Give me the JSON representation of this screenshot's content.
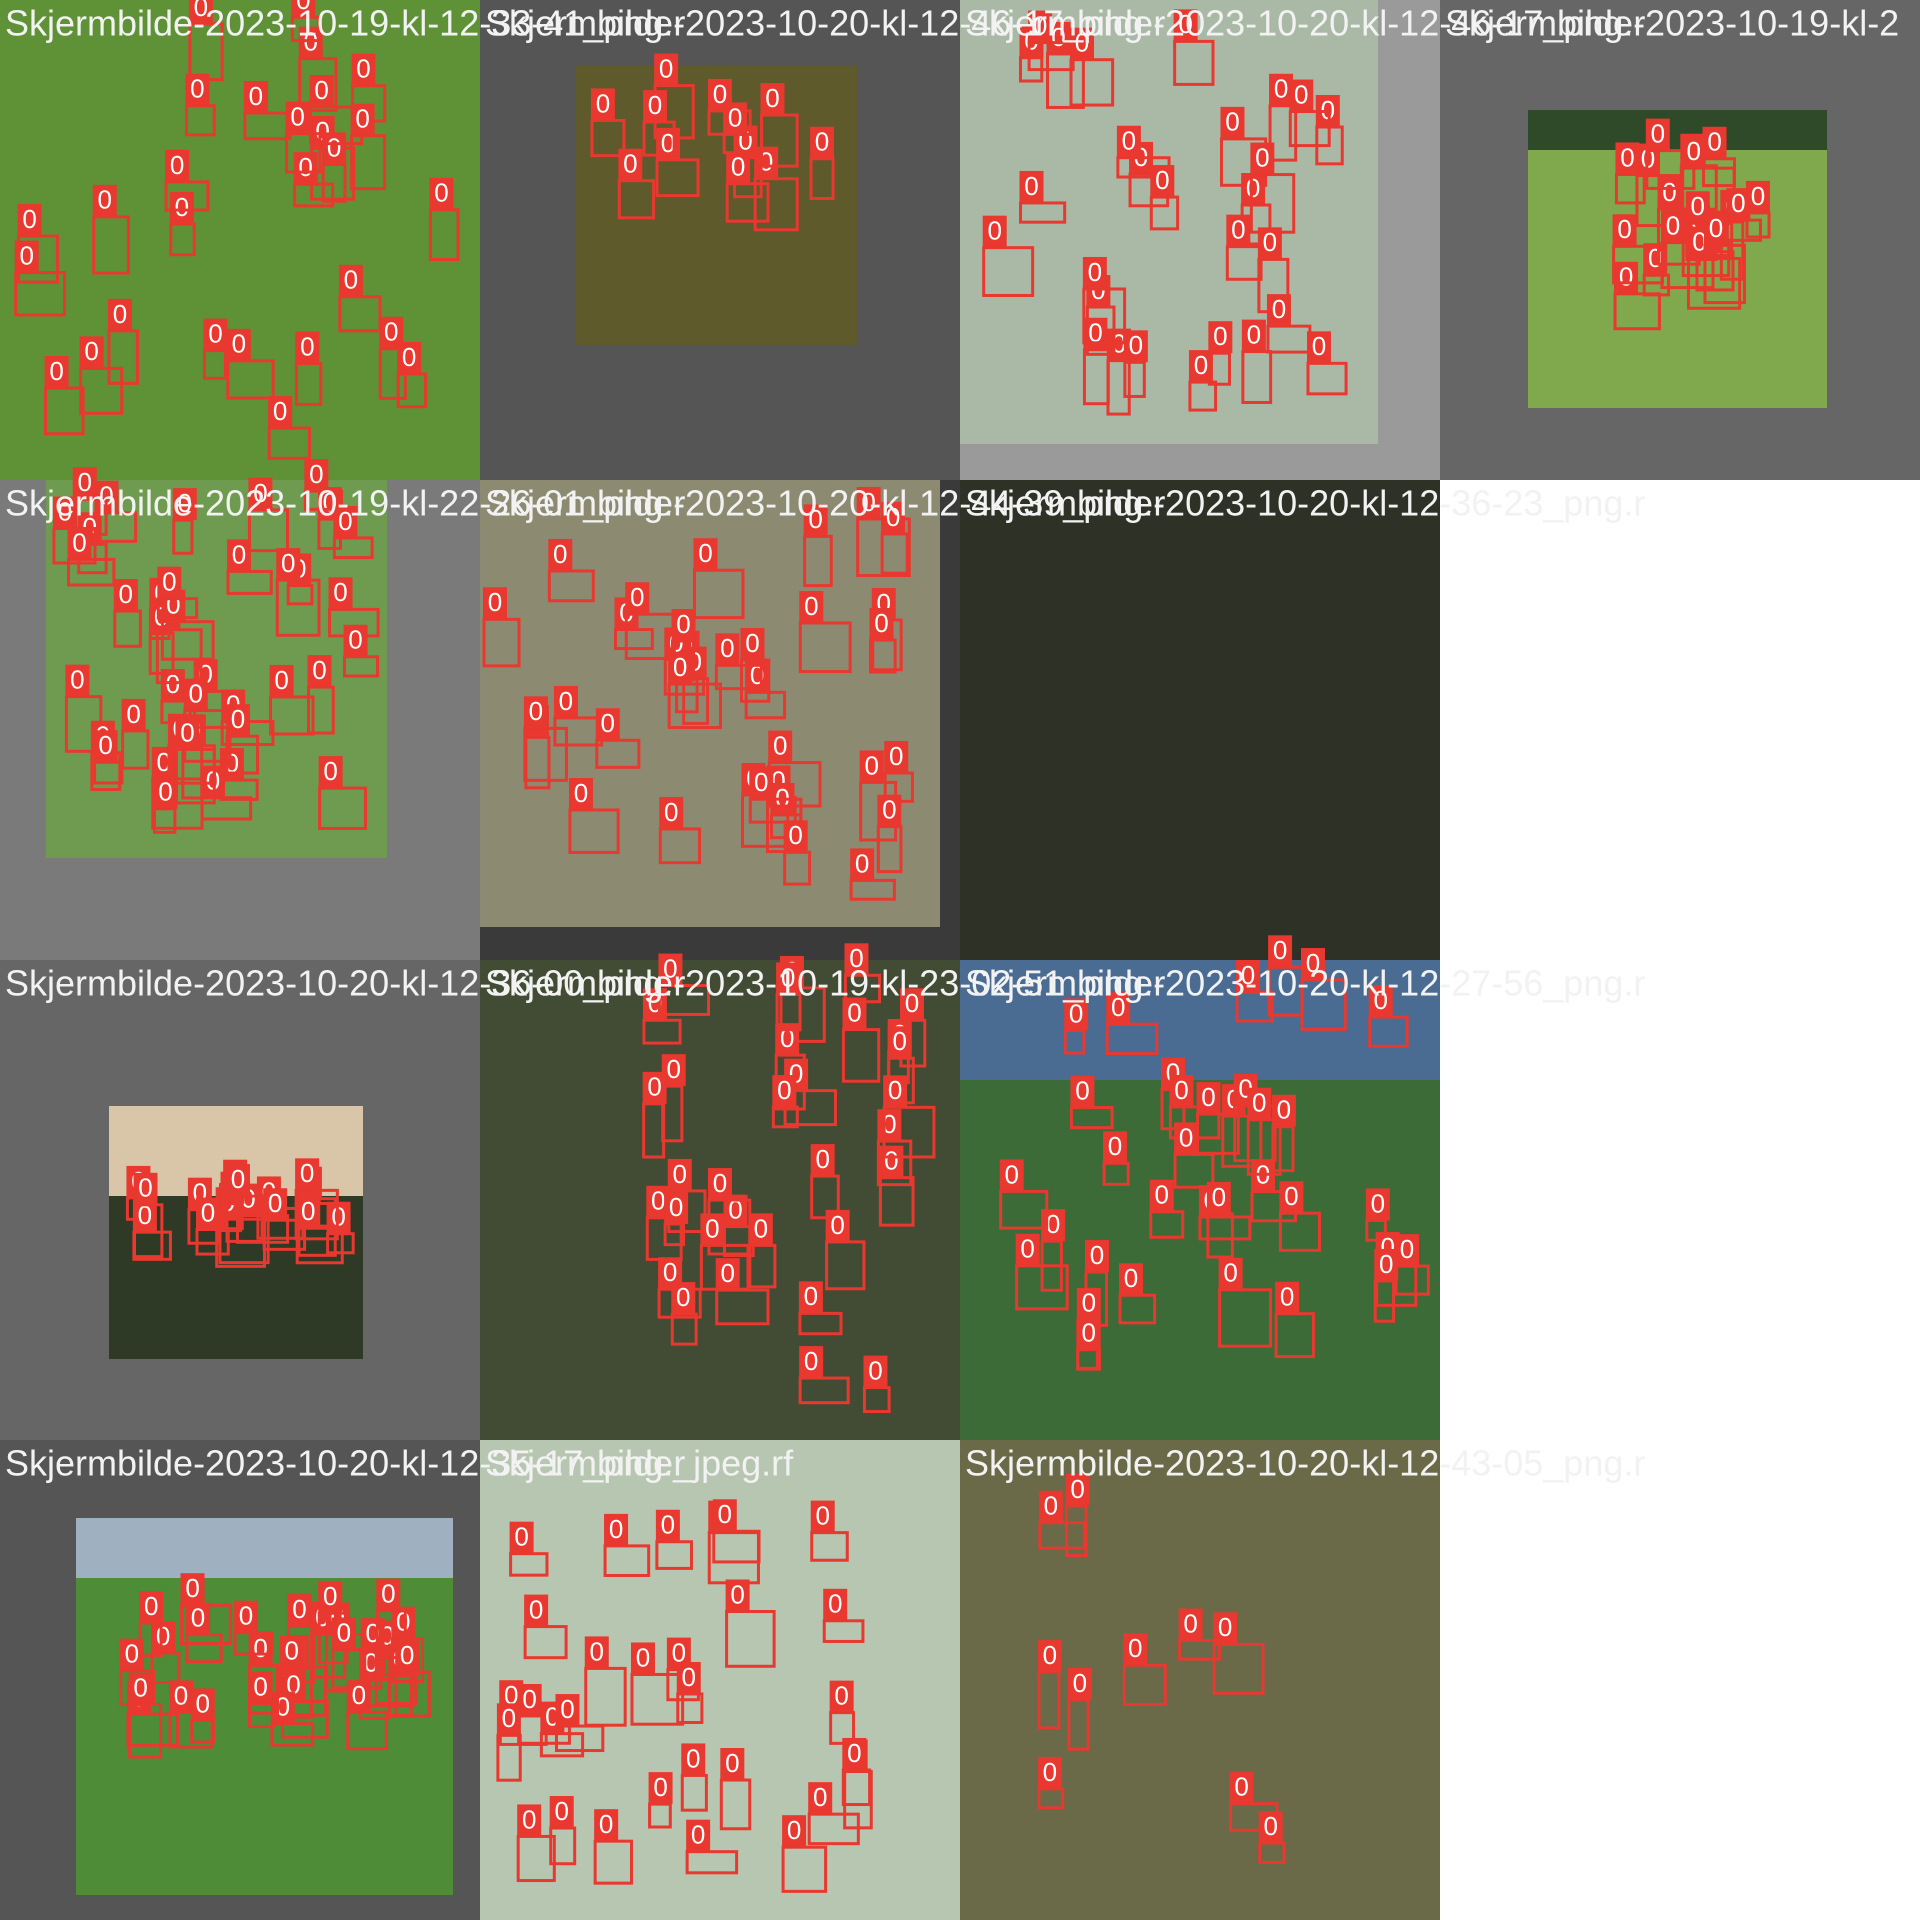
{
  "tiles": [
    {
      "title": "Skjermbilde-2023-10-19-kl-12-33-41_png.r",
      "labels": [
        "0",
        "0",
        "0",
        "0",
        "0",
        "0",
        "0",
        "0",
        "0",
        "0",
        "0",
        "0",
        "0",
        "0",
        "0",
        "0",
        "0",
        "0",
        "0",
        "0",
        "0",
        "0",
        "0",
        "0",
        "0",
        "0",
        "0",
        "0"
      ]
    },
    {
      "title": "Skjermbilde-2023-10-20-kl-12-46-17_png.r",
      "labels": [
        "0",
        "0",
        "0",
        "0",
        "0",
        "0",
        "0",
        "0",
        "0",
        "0",
        "0",
        "0"
      ]
    },
    {
      "title": "Skjermbilde-2023-10-20-kl-12-46-17_png.r",
      "labels": [
        "0",
        "0",
        "0",
        "0",
        "0",
        "0",
        "0",
        "0",
        "0",
        "0",
        "0",
        "0",
        "0",
        "0",
        "0",
        "0",
        "0",
        "0",
        "0",
        "0",
        "0",
        "0",
        "0",
        "0",
        "0",
        "0",
        "0",
        "0"
      ]
    },
    {
      "title": "Skjermbilde-2023-10-19-kl-2",
      "labels": [
        "0",
        "0",
        "0",
        "0",
        "0",
        "0",
        "0",
        "0",
        "0",
        "0",
        "0",
        "0",
        "0",
        "0",
        "0",
        "0",
        "0",
        "0",
        "0",
        "0"
      ]
    },
    {
      "title": "Skjermbilde-2023-10-19-kl-22-26-01_png.r",
      "labels": [
        "0",
        "0",
        "0",
        "0",
        "0",
        "0",
        "0",
        "0",
        "0",
        "0",
        "0",
        "0",
        "0",
        "0",
        "0",
        "0",
        "0",
        "0",
        "0",
        "0",
        "0",
        "0",
        "0",
        "0",
        "0",
        "0",
        "0",
        "0",
        "0",
        "0",
        "0",
        "0",
        "0",
        "0",
        "0",
        "0",
        "0",
        "0",
        "0",
        "0"
      ]
    },
    {
      "title": "Skjermbilde-2023-10-20-kl-12-44-39_png.r",
      "labels": [
        "0",
        "0",
        "0",
        "0",
        "0",
        "0",
        "0",
        "0",
        "0",
        "0",
        "0",
        "0",
        "0",
        "0",
        "0",
        "0",
        "0",
        "0",
        "0",
        "0",
        "0",
        "0",
        "0",
        "0",
        "0",
        "0",
        "0",
        "0",
        "0",
        "0",
        "0",
        "0",
        "0",
        "0",
        "0"
      ]
    },
    {
      "title": "Skjermbilde-2023-10-20-kl-12-36-23_png.r",
      "labels": []
    },
    {
      "title": "Skjermbilde-2023-10-20-kl-12-36-00_png.r",
      "labels": [
        "0",
        "0",
        "0",
        "0",
        "0",
        "0",
        "0",
        "0",
        "0",
        "0",
        "0",
        "0",
        "0",
        "0",
        "0",
        "0",
        "0",
        "0"
      ]
    },
    {
      "title": "Skjermbilde-2023-10-19-kl-23-02-51_png.r",
      "labels": [
        "0",
        "0",
        "0",
        "0",
        "0",
        "0",
        "0",
        "0",
        "0",
        "0",
        "0",
        "0",
        "0",
        "0",
        "0",
        "0",
        "0",
        "0",
        "0",
        "0",
        "0",
        "0",
        "0",
        "0",
        "0",
        "0",
        "0",
        "0",
        "0",
        "0",
        "0",
        "0"
      ]
    },
    {
      "title": "Skjermbilde-2023-10-20-kl-12-27-56_png.r",
      "labels": [
        "0",
        "0",
        "0",
        "0",
        "0",
        "0",
        "0",
        "0",
        "0",
        "0",
        "0",
        "0",
        "0",
        "0",
        "0",
        "0",
        "0",
        "0",
        "0",
        "0",
        "0",
        "0",
        "0",
        "0",
        "0",
        "0",
        "0",
        "0",
        "0",
        "0",
        "0",
        "0",
        "0",
        "0"
      ]
    },
    {
      "title": "Skjermbilde-2023-10-20-kl-12-35-17_png.r",
      "labels": [
        "0",
        "0",
        "0",
        "0",
        "0",
        "0",
        "0",
        "0",
        "0",
        "0",
        "0",
        "0",
        "0",
        "0",
        "0",
        "0",
        "0",
        "0",
        "0",
        "0",
        "0",
        "0",
        "0",
        "0",
        "0",
        "0",
        "0",
        "0",
        "0",
        "0"
      ]
    },
    {
      "title": "Skjermbilde_jpeg.rf",
      "labels": [
        "0",
        "0",
        "0",
        "0",
        "0",
        "0",
        "0",
        "0",
        "0",
        "0",
        "0",
        "0",
        "0",
        "0",
        "0",
        "0",
        "0",
        "0",
        "0",
        "0",
        "0",
        "0",
        "0",
        "0",
        "0",
        "0",
        "0",
        "0",
        "0",
        "0"
      ]
    },
    {
      "title": "Skjermbilde-2023-10-20-kl-12-43-05_png.r",
      "labels": [
        "0",
        "0",
        "0",
        "0",
        "0",
        "0",
        "0",
        "0",
        "0",
        "0"
      ]
    }
  ]
}
